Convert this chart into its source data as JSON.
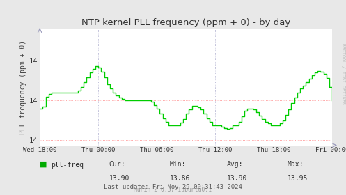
{
  "title": "NTP kernel PLL frequency (ppm + 0) - by day",
  "ylabel": "PLL frequency (ppm + 0)",
  "bg_color": "#e8e8e8",
  "plot_bg_color": "#ffffff",
  "line_color": "#00cc00",
  "grid_color_h": "#ff8888",
  "grid_color_v": "#aaaacc",
  "y_min": 13.832,
  "y_max": 14.008,
  "y_ticks": [
    13.84,
    13.9,
    13.96
  ],
  "x_tick_labels": [
    "Wed 18:00",
    "Thu 00:00",
    "Thu 06:00",
    "Thu 12:00",
    "Thu 18:00",
    "Fri 00:00"
  ],
  "legend_label": "pll-freq",
  "legend_color": "#00aa00",
  "cur": "13.90",
  "min_val": "13.86",
  "avg_val": "13.90",
  "max_val": "13.95",
  "last_update": "Last update: Fri Nov 29 00:31:43 2024",
  "munin_version": "Munin 2.0.37-1ubuntu0.1",
  "sidebar_text": "RRDTOOL / TOBI OETIKER",
  "x_hours": [
    0.0,
    0.3,
    0.6,
    0.9,
    1.2,
    1.5,
    1.8,
    2.1,
    2.4,
    2.7,
    3.0,
    3.3,
    3.6,
    3.9,
    4.2,
    4.5,
    4.8,
    5.1,
    5.4,
    5.7,
    6.0,
    6.3,
    6.6,
    6.9,
    7.2,
    7.5,
    7.8,
    8.1,
    8.4,
    8.7,
    9.0,
    9.3,
    9.6,
    9.9,
    10.2,
    10.5,
    10.8,
    11.1,
    11.4,
    11.7,
    12.0,
    12.3,
    12.6,
    12.9,
    13.2,
    13.5,
    13.8,
    14.1,
    14.4,
    14.7,
    15.0,
    15.3,
    15.6,
    15.9,
    16.2,
    16.5,
    16.8,
    17.1,
    17.4,
    17.7,
    18.0,
    18.3,
    18.6,
    18.9,
    19.2,
    19.5,
    19.8,
    20.1,
    20.4,
    20.7,
    21.0,
    21.3,
    21.6,
    21.9,
    22.2,
    22.5,
    22.8,
    23.1,
    23.4,
    23.7,
    24.0,
    24.3,
    24.6,
    24.9,
    25.2,
    25.5,
    25.8,
    26.1,
    26.4,
    26.7,
    27.0,
    27.3,
    27.6,
    27.9,
    28.2,
    28.5,
    28.8,
    29.1,
    29.4,
    29.7,
    30.0
  ],
  "y_vals": [
    13.888,
    13.891,
    13.905,
    13.91,
    13.912,
    13.912,
    13.912,
    13.912,
    13.912,
    13.912,
    13.912,
    13.912,
    13.912,
    13.915,
    13.92,
    13.928,
    13.935,
    13.942,
    13.948,
    13.952,
    13.95,
    13.944,
    13.935,
    13.925,
    13.918,
    13.912,
    13.908,
    13.904,
    13.902,
    13.9,
    13.9,
    13.9,
    13.9,
    13.9,
    13.9,
    13.9,
    13.9,
    13.9,
    13.898,
    13.893,
    13.888,
    13.88,
    13.873,
    13.867,
    13.862,
    13.862,
    13.862,
    13.862,
    13.866,
    13.872,
    13.88,
    13.887,
    13.892,
    13.892,
    13.89,
    13.886,
    13.88,
    13.873,
    13.867,
    13.862,
    13.862,
    13.862,
    13.86,
    13.858,
    13.857,
    13.858,
    13.862,
    13.862,
    13.868,
    13.876,
    13.884,
    13.888,
    13.888,
    13.886,
    13.882,
    13.877,
    13.872,
    13.868,
    13.865,
    13.862,
    13.862,
    13.862,
    13.865,
    13.87,
    13.878,
    13.887,
    13.896,
    13.904,
    13.912,
    13.918,
    13.922,
    13.928,
    13.933,
    13.938,
    13.942,
    13.945,
    13.944,
    13.94,
    13.934,
    13.92,
    13.9
  ]
}
